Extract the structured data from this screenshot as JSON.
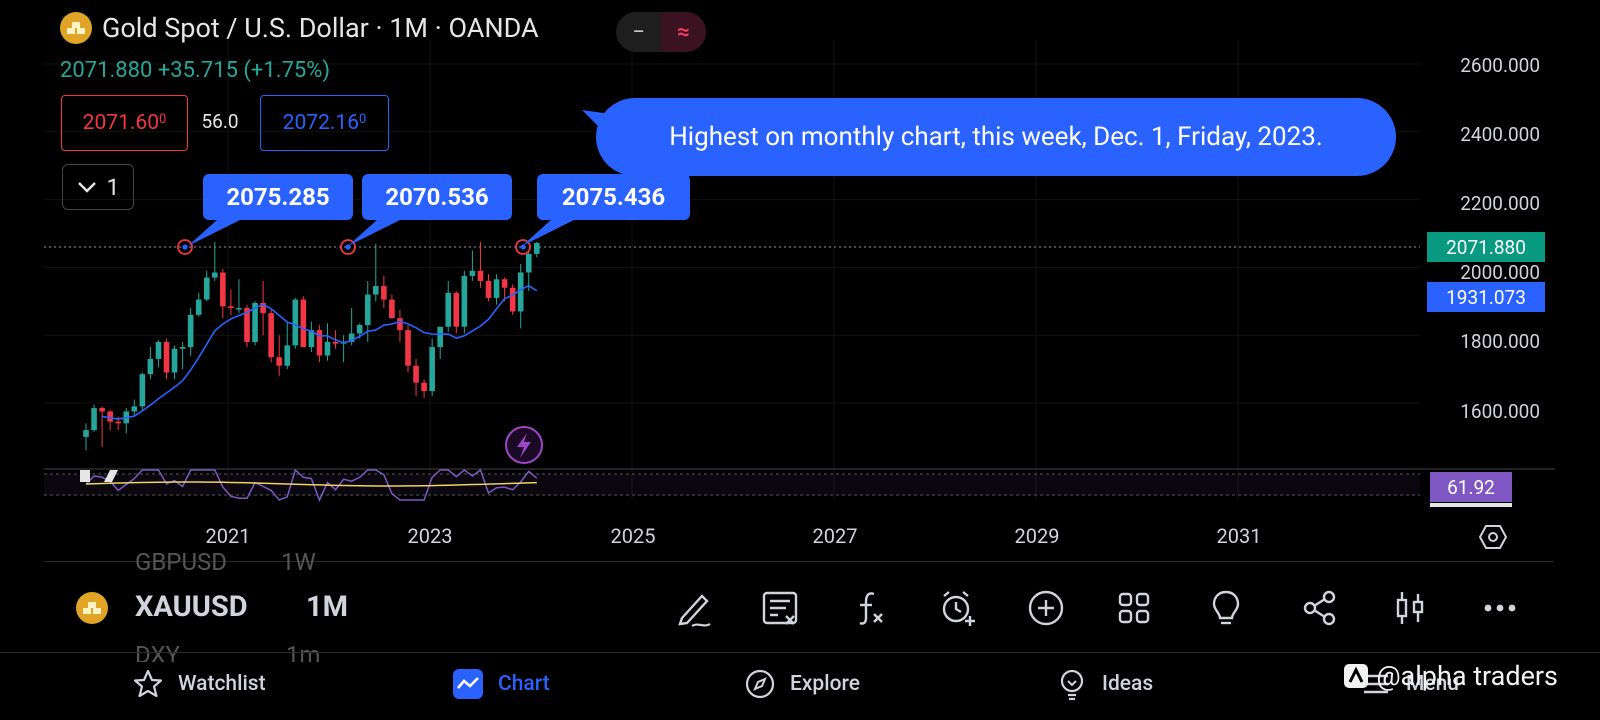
{
  "header": {
    "title": "Gold Spot / U.S. Dollar · 1M · OANDA",
    "last_price": "2071.880",
    "change": "+35.715 (+1.75%)",
    "bid": "2071.60",
    "bid_sup": "0",
    "spread": "56.0",
    "ask": "2072.16",
    "ask_sup": "0",
    "toggle_left": "−",
    "toggle_right": "≈",
    "indicators_collapse_count": "1"
  },
  "annotations": {
    "peak1": "2075.285",
    "peak2": "2070.536",
    "peak3": "2075.436",
    "note": "Highest on monthly chart, this week, Dec. 1, Friday, 2023."
  },
  "price_axis": {
    "labels": [
      "2600.000",
      "2400.000",
      "2200.000",
      "2000.000",
      "1800.000",
      "1600.000"
    ],
    "last_price_tag": "2071.880",
    "ma_tag": "1931.073",
    "rsi_tag": "61.92"
  },
  "time_axis": {
    "labels": [
      "2021",
      "2023",
      "2025",
      "2027",
      "2029",
      "2031"
    ]
  },
  "symbol_bar": {
    "symbol": "XAUUSD",
    "interval": "1M",
    "ghost_prev_symbol": "GBPUSD",
    "ghost_prev_interval": "1W",
    "ghost_next_symbol": "DXY",
    "ghost_next_interval": "1m"
  },
  "toolbar": {
    "icons": [
      "pen-icon",
      "notes-icon",
      "function-icon",
      "alarm-add-icon",
      "add-circle-icon",
      "grid-icon",
      "lightbulb-icon",
      "share-icon",
      "candles-icon",
      "more-icon"
    ]
  },
  "nav": {
    "watchlist": "Watchlist",
    "chart": "Chart",
    "explore": "Explore",
    "ideas": "Ideas",
    "menu": "Menu"
  },
  "watermark": "@alpha traders",
  "colors": {
    "up": "#26a69a",
    "down": "#f23645",
    "accent": "#2962ff",
    "rsi": "#7e57c2",
    "gold": "#e0a526"
  },
  "chart_data": {
    "type": "candlestick",
    "title": "Gold Spot / U.S. Dollar · 1M · OANDA",
    "ylim": [
      1450,
      2650
    ],
    "x_ticks": [
      "2021",
      "2023",
      "2025",
      "2027",
      "2029",
      "2031"
    ],
    "candles_ohlc": [
      [
        1500,
        1540,
        1460,
        1520
      ],
      [
        1520,
        1595,
        1515,
        1585
      ],
      [
        1585,
        1590,
        1470,
        1575
      ],
      [
        1575,
        1580,
        1520,
        1545
      ],
      [
        1545,
        1560,
        1520,
        1540
      ],
      [
        1540,
        1585,
        1510,
        1575
      ],
      [
        1575,
        1610,
        1565,
        1590
      ],
      [
        1590,
        1690,
        1575,
        1685
      ],
      [
        1685,
        1765,
        1670,
        1730
      ],
      [
        1730,
        1785,
        1705,
        1780
      ],
      [
        1780,
        1790,
        1670,
        1690
      ],
      [
        1690,
        1770,
        1670,
        1760
      ],
      [
        1760,
        1780,
        1700,
        1765
      ],
      [
        1765,
        1880,
        1740,
        1860
      ],
      [
        1860,
        1925,
        1855,
        1905
      ],
      [
        1905,
        1990,
        1900,
        1970
      ],
      [
        1970,
        2075,
        1960,
        1985
      ],
      [
        1985,
        1995,
        1850,
        1885
      ],
      [
        1885,
        1935,
        1860,
        1880
      ],
      [
        1880,
        1965,
        1865,
        1880
      ],
      [
        1880,
        1890,
        1765,
        1780
      ],
      [
        1780,
        1900,
        1770,
        1895
      ],
      [
        1895,
        1960,
        1800,
        1865
      ],
      [
        1865,
        1875,
        1720,
        1735
      ],
      [
        1735,
        1800,
        1680,
        1710
      ],
      [
        1710,
        1840,
        1700,
        1770
      ],
      [
        1770,
        1910,
        1760,
        1905
      ],
      [
        1905,
        1915,
        1765,
        1765
      ],
      [
        1765,
        1840,
        1750,
        1815
      ],
      [
        1815,
        1830,
        1720,
        1740
      ],
      [
        1740,
        1835,
        1725,
        1780
      ],
      [
        1780,
        1815,
        1760,
        1775
      ],
      [
        1775,
        1800,
        1720,
        1780
      ],
      [
        1780,
        1880,
        1770,
        1805
      ],
      [
        1805,
        1835,
        1790,
        1830
      ],
      [
        1830,
        1960,
        1780,
        1920
      ],
      [
        1920,
        2070,
        1900,
        1945
      ],
      [
        1945,
        1975,
        1880,
        1905
      ],
      [
        1905,
        1920,
        1850,
        1850
      ],
      [
        1850,
        1875,
        1780,
        1815
      ],
      [
        1815,
        1830,
        1690,
        1710
      ],
      [
        1710,
        1730,
        1620,
        1660
      ],
      [
        1660,
        1670,
        1615,
        1635
      ],
      [
        1635,
        1790,
        1620,
        1765
      ],
      [
        1765,
        1820,
        1730,
        1825
      ],
      [
        1825,
        1960,
        1810,
        1925
      ],
      [
        1925,
        1930,
        1805,
        1825
      ],
      [
        1825,
        1990,
        1805,
        1975
      ],
      [
        1975,
        2050,
        1960,
        1990
      ],
      [
        1990,
        2075,
        1940,
        1960
      ],
      [
        1960,
        1980,
        1900,
        1910
      ],
      [
        1910,
        1980,
        1890,
        1965
      ],
      [
        1965,
        1970,
        1900,
        1940
      ],
      [
        1940,
        1950,
        1860,
        1870
      ],
      [
        1870,
        2010,
        1820,
        1985
      ],
      [
        1985,
        2050,
        1930,
        2040
      ],
      [
        2040,
        2075,
        2030,
        2071.88
      ]
    ],
    "ma_series_last": 1931.073,
    "rsi_last": 61.92,
    "peaks": [
      {
        "label": "2075.285",
        "value": 2075.285
      },
      {
        "label": "2070.536",
        "value": 2070.536
      },
      {
        "label": "2075.436",
        "value": 2075.436
      }
    ]
  }
}
